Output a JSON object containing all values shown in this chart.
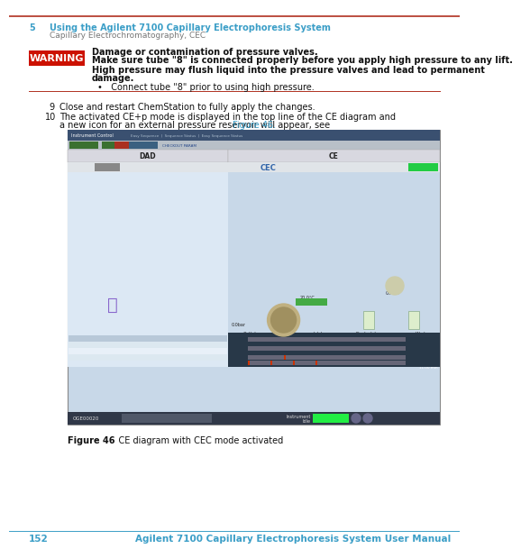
{
  "bg_color": "#ffffff",
  "top_rule_color": "#b03020",
  "header_num": "5",
  "header_title": "Using the Agilent 7100 Capillary Electrophoresis System",
  "header_subtitle": "Capillary Electrochromatography, CEC",
  "header_color": "#3b9ec7",
  "warning_box_color": "#cc1100",
  "warning_text": "WARNING",
  "warn_line1_bold": "Damage or contamination of pressure valves.",
  "warn_line2_bold": "Make sure tube \"8\" is connected properly before you apply high pressure to any lift.",
  "warn_line3a_bold": "High pressure may flush liquid into the pressure valves and lead to permanent",
  "warn_line3b_bold": "damage.",
  "warn_bullet": "•   Connect tube \"8\" prior to using high pressure.",
  "separator_color": "#b03020",
  "step9_num": "9",
  "step9_text": "Close and restart ChemStation to fully apply the changes.",
  "step10_num": "10",
  "step10_line1": "The activated CE+p mode is displayed in the top line of the CE diagram and",
  "step10_line2a": "a new icon for an external pressure reservoir will appear, see ",
  "step10_link": "Figure 46.",
  "figure_caption_bold": "Figure 46",
  "figure_caption_rest": "    CE diagram with CEC mode activated",
  "footer_num": "152",
  "footer_title": "Agilent 7100 Capillary Electrophoresis System User Manual",
  "footer_color": "#3b9ec7",
  "sc_bg": "#c8d8e8",
  "sc_topbar": "#3a5070",
  "sc_bar2": "#d0d0d8",
  "sc_inner_bg": "#c0d0e0",
  "sc_white": "#ffffff",
  "sc_dark_footer": "#404050",
  "sc_green_idle": "#22cc44",
  "sc_grey_idle": "#888888",
  "sc_av_bg": "#283848",
  "sc_table_header_bg": "#b8c8d8",
  "sc_table_row_bg": "#dce8f0"
}
